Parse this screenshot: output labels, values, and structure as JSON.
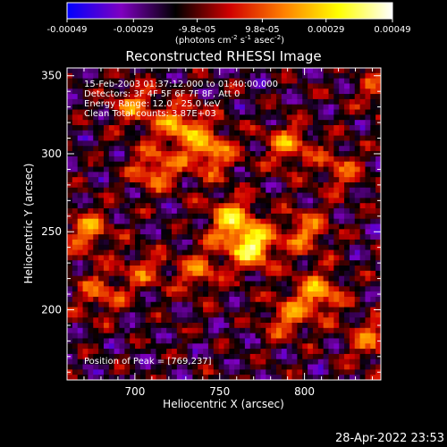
{
  "chart_data": {
    "type": "heatmap",
    "title": "Reconstructed RHESSI Image",
    "xlabel": "Heliocentric X (arcsec)",
    "ylabel": "Heliocentric Y (arcsec)",
    "xlim": [
      660,
      845
    ],
    "ylim": [
      155,
      355
    ],
    "x_ticks": [
      {
        "value": 700,
        "label": "700"
      },
      {
        "value": 750,
        "label": "750"
      },
      {
        "value": 800,
        "label": "800"
      }
    ],
    "y_ticks": [
      {
        "value": 200,
        "label": "200"
      },
      {
        "value": 250,
        "label": "250"
      },
      {
        "value": 300,
        "label": "300"
      },
      {
        "value": 350,
        "label": "350"
      }
    ],
    "colorbar": {
      "range": [
        -0.00049,
        0.00049
      ],
      "ticks": [
        {
          "value": -0.00049,
          "label": "-0.00049"
        },
        {
          "value": -0.00029,
          "label": "-0.00029"
        },
        {
          "value": -9.8e-05,
          "label": "-9.8e-05"
        },
        {
          "value": 9.8e-05,
          "label": "9.8e-05"
        },
        {
          "value": 0.00029,
          "label": "0.00029"
        },
        {
          "value": 0.00049,
          "label": "0.00049"
        }
      ],
      "unit_parts": [
        "(photons cm",
        "-2",
        " s",
        "-1",
        " asec",
        "-2",
        ")"
      ],
      "stops": [
        "#0000ff",
        "#7f00c0",
        "#000000",
        "#d00000",
        "#ff8000",
        "#ffff00",
        "#ffffff"
      ]
    },
    "annotations": [
      "15-Feb-2003 01:37:12.000 to 01:40:00.000",
      "Detectors: 3F 4F 5F 6F 7F 8F, Att 0",
      "Energy Range: 12.0 - 25.0 keV",
      "Clean    Total counts: 3.87E+03"
    ],
    "peak_label": "Position of Peak = [769,237]",
    "peak": [
      769,
      237
    ],
    "sources": [
      {
        "x": 769,
        "y": 240,
        "amp": 1.0
      },
      {
        "x": 757,
        "y": 258,
        "amp": 0.8
      },
      {
        "x": 745,
        "y": 300,
        "amp": 0.7
      },
      {
        "x": 728,
        "y": 318,
        "amp": 0.75
      },
      {
        "x": 712,
        "y": 290,
        "amp": 0.65
      },
      {
        "x": 700,
        "y": 330,
        "amp": 0.55
      },
      {
        "x": 790,
        "y": 305,
        "amp": 0.6
      },
      {
        "x": 800,
        "y": 250,
        "amp": 0.6
      },
      {
        "x": 808,
        "y": 210,
        "amp": 0.7
      },
      {
        "x": 790,
        "y": 195,
        "amp": 0.5
      },
      {
        "x": 672,
        "y": 250,
        "amp": 0.65
      },
      {
        "x": 680,
        "y": 210,
        "amp": 0.5
      },
      {
        "x": 705,
        "y": 225,
        "amp": 0.4
      },
      {
        "x": 738,
        "y": 225,
        "amp": 0.55
      },
      {
        "x": 840,
        "y": 180,
        "amp": 0.55
      },
      {
        "x": 845,
        "y": 340,
        "amp": 0.4
      },
      {
        "x": 820,
        "y": 290,
        "amp": 0.45
      }
    ]
  },
  "timestamp": "28-Apr-2022 23:53"
}
